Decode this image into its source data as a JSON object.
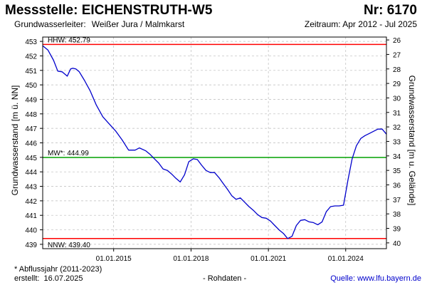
{
  "header": {
    "title_left": "Messstelle: EICHENSTRUTH-W5",
    "title_right": "Nr: 6170",
    "aquifer_label": "Grundwasserleiter:",
    "aquifer_value": "Weißer Jura / Malmkarst",
    "period": "Zeitraum: Apr 2012 - Jul 2025"
  },
  "footer": {
    "footnote": "* Abflussjahr (2011-2023)",
    "created_label": "erstellt:",
    "created_date": "16.07.2025",
    "raw_data": "- Rohdaten -",
    "source_label": "Quelle:",
    "source_link": "www.lfu.bayern.de"
  },
  "colors": {
    "series": "#0000cc",
    "extremes": "#ff0000",
    "mean": "#00a000",
    "grid": "#bbbbbb"
  },
  "chart_data": {
    "type": "line",
    "ylabel": "Grundwasserstand [m ü. NN]",
    "y2label": "Grundwasserstand [m u. Gelände]",
    "ylim": [
      438.7,
      453.3
    ],
    "y_ticks": [
      439,
      440,
      441,
      442,
      443,
      444,
      445,
      446,
      447,
      448,
      449,
      450,
      451,
      452,
      453
    ],
    "y2lim": [
      40.4,
      25.8
    ],
    "y2_ticks": [
      26,
      27,
      28,
      29,
      30,
      31,
      32,
      33,
      34,
      35,
      36,
      37,
      38,
      39,
      40
    ],
    "xlim": [
      "2012-04-01",
      "2025-07-31"
    ],
    "x_ticks": [
      "2015-01-01",
      "2018-01-01",
      "2021-01-01",
      "2024-01-01"
    ],
    "x_tick_labels": [
      "01.01.2015",
      "01.01.2018",
      "01.01.2021",
      "01.01.2024"
    ],
    "grid": true,
    "reference_lines": [
      {
        "label": "HHW: 452.79",
        "value": 452.79,
        "kind": "extreme"
      },
      {
        "label": "MW*: 444.99",
        "value": 444.99,
        "kind": "mean"
      },
      {
        "label": "NNW: 439.40",
        "value": 439.4,
        "kind": "extreme"
      }
    ],
    "series": [
      {
        "x": [
          "2012-04-01",
          "2012-06-15",
          "2012-09-01",
          "2012-11-01",
          "2013-01-01",
          "2013-03-15",
          "2013-05-01",
          "2013-06-01",
          "2013-07-15",
          "2013-09-01",
          "2013-11-15",
          "2014-02-01",
          "2014-05-01",
          "2014-08-01",
          "2014-11-01",
          "2015-02-01",
          "2015-05-01",
          "2015-08-01",
          "2015-11-01",
          "2016-01-01",
          "2016-04-01",
          "2016-06-01",
          "2016-08-01",
          "2016-10-01",
          "2016-12-01",
          "2017-02-01",
          "2017-04-01",
          "2017-06-01",
          "2017-08-01",
          "2017-10-01",
          "2017-12-01",
          "2018-02-01",
          "2018-04-01",
          "2018-06-01",
          "2018-08-01",
          "2018-10-01",
          "2018-12-01",
          "2019-02-01",
          "2019-04-01",
          "2019-06-01",
          "2019-08-01",
          "2019-10-01",
          "2019-12-01",
          "2020-02-01",
          "2020-04-01",
          "2020-06-01",
          "2020-08-01",
          "2020-10-01",
          "2020-12-01",
          "2021-02-01",
          "2021-04-01",
          "2021-06-01",
          "2021-08-01",
          "2021-10-01",
          "2021-12-01",
          "2022-02-01",
          "2022-04-01",
          "2022-06-01",
          "2022-08-01",
          "2022-10-01",
          "2022-12-01",
          "2023-02-01",
          "2023-04-01",
          "2023-06-01",
          "2023-08-01",
          "2023-10-01",
          "2023-12-01",
          "2024-02-01",
          "2024-04-01",
          "2024-06-01",
          "2024-08-01",
          "2024-10-01",
          "2024-12-01",
          "2025-02-01",
          "2025-04-01",
          "2025-06-01",
          "2025-07-31"
        ],
        "values": [
          452.7,
          452.4,
          451.7,
          450.95,
          450.9,
          450.6,
          451.1,
          451.15,
          451.1,
          450.9,
          450.3,
          449.6,
          448.6,
          447.8,
          447.3,
          446.8,
          446.2,
          445.5,
          445.5,
          445.65,
          445.45,
          445.2,
          444.9,
          444.6,
          444.2,
          444.1,
          443.85,
          443.55,
          443.3,
          443.8,
          444.7,
          444.9,
          444.85,
          444.45,
          444.1,
          443.95,
          443.95,
          443.6,
          443.2,
          442.8,
          442.35,
          442.1,
          442.2,
          441.9,
          441.6,
          441.35,
          441.05,
          440.85,
          440.8,
          440.6,
          440.3,
          440.0,
          439.75,
          439.4,
          439.55,
          440.3,
          440.65,
          440.7,
          440.55,
          440.5,
          440.35,
          440.55,
          441.25,
          441.6,
          441.65,
          441.65,
          441.7,
          443.4,
          444.9,
          445.8,
          446.3,
          446.5,
          446.65,
          446.8,
          446.95,
          446.95,
          446.6
        ]
      }
    ]
  }
}
